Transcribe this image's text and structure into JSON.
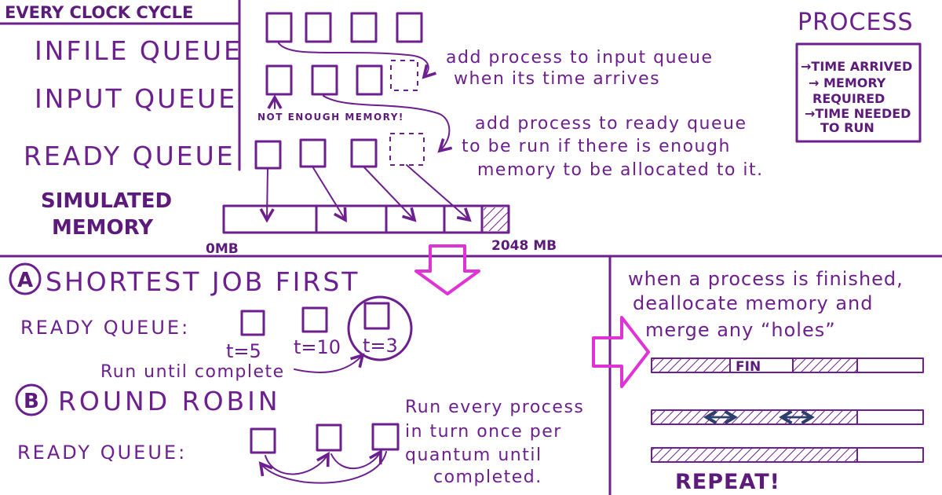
{
  "header": {
    "every_clock_cycle": "EVERY CLOCK CYCLE",
    "infile_queue": "INFILE QUEUE",
    "input_queue": "INPUT QUEUE",
    "ready_queue": "READY QUEUE",
    "simulated_memory_line1": "SIMULATED",
    "simulated_memory_line2": "MEMORY"
  },
  "notes": {
    "input_note_line1": "add process to input queue",
    "input_note_line2": "when its time arrives",
    "not_enough_memory": "NOT ENOUGH MEMORY!",
    "ready_note_line1": "add process to ready queue",
    "ready_note_line2": "to be run if there is enough",
    "ready_note_line3": "memory to be allocated to it."
  },
  "memory": {
    "start_label": "0MB",
    "end_label": "2048 MB"
  },
  "process_box": {
    "title": "PROCESS",
    "items": [
      "→TIME ARRIVED",
      "→ MEMORY",
      "REQUIRED",
      "→TIME NEEDED",
      "TO RUN"
    ]
  },
  "sjf": {
    "letter": "A",
    "title": "SHORTEST JOB FIRST",
    "ready_queue_label": "READY QUEUE:",
    "times": [
      "t=5",
      "t=10",
      "t=3"
    ],
    "run_note": "Run until complete"
  },
  "rr": {
    "letter": "B",
    "title": "ROUND ROBIN",
    "ready_queue_label": "READY QUEUE:",
    "note_line1": "Run every process",
    "note_line2": "in turn once per",
    "note_line3": "quantum until",
    "note_line4": "completed."
  },
  "dealloc": {
    "note_line1": "when a process is finished,",
    "note_line2": "deallocate memory and",
    "note_line3": "merge any “holes”",
    "fin_label": "FIN",
    "repeat_label": "REPEAT!"
  },
  "colors": {
    "ink": "#6d1f8f",
    "arrow_accent": "#e033d6",
    "merge_arrows": "#2c3e6b"
  }
}
